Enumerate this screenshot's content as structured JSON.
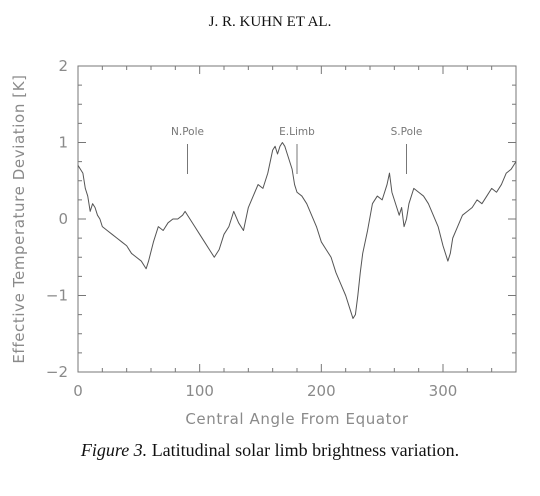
{
  "header": {
    "running_head": "J. R. KUHN ET AL."
  },
  "caption": {
    "label": "Figure 3.",
    "text": "Latitudinal solar limb brightness variation."
  },
  "chart_data": {
    "type": "line",
    "xlabel": "Central Angle From Equator",
    "ylabel": "Effective Temperature Deviation [K]",
    "xlim": [
      0,
      360
    ],
    "ylim": [
      -2,
      2
    ],
    "x_ticks": [
      0,
      100,
      200,
      300
    ],
    "y_ticks": [
      -2,
      -1,
      0,
      1,
      2
    ],
    "grid": false,
    "annotations": [
      {
        "label": "N.Pole",
        "x": 90
      },
      {
        "label": "E.Limb",
        "x": 180
      },
      {
        "label": "S.Pole",
        "x": 270
      }
    ],
    "series": [
      {
        "x": [
          0,
          2,
          4,
          6,
          8,
          10,
          12,
          14,
          16,
          18,
          20,
          24,
          28,
          32,
          36,
          40,
          44,
          48,
          52,
          56,
          58,
          62,
          66,
          70,
          74,
          78,
          82,
          86,
          88,
          92,
          96,
          100,
          104,
          108,
          112,
          116,
          120,
          124,
          128,
          132,
          136,
          140,
          144,
          148,
          152,
          156,
          160,
          162,
          164,
          166,
          168,
          170,
          172,
          174,
          176,
          178,
          180,
          184,
          188,
          192,
          196,
          200,
          204,
          208,
          212,
          216,
          220,
          224,
          226,
          228,
          230,
          232,
          234,
          238,
          242,
          246,
          250,
          254,
          256,
          258,
          262,
          264,
          266,
          268,
          270,
          272,
          276,
          280,
          284,
          288,
          292,
          296,
          300,
          304,
          306,
          308,
          312,
          316,
          320,
          324,
          328,
          332,
          336,
          340,
          344,
          348,
          352,
          356,
          360
        ],
        "y": [
          0.7,
          0.65,
          0.6,
          0.4,
          0.3,
          0.1,
          0.2,
          0.15,
          0.05,
          0.0,
          -0.1,
          -0.15,
          -0.2,
          -0.25,
          -0.3,
          -0.35,
          -0.45,
          -0.5,
          -0.55,
          -0.65,
          -0.55,
          -0.3,
          -0.1,
          -0.15,
          -0.05,
          0.0,
          0.0,
          0.05,
          0.1,
          0.0,
          -0.1,
          -0.2,
          -0.3,
          -0.4,
          -0.5,
          -0.4,
          -0.2,
          -0.1,
          0.1,
          -0.05,
          -0.15,
          0.15,
          0.3,
          0.45,
          0.4,
          0.6,
          0.9,
          0.95,
          0.85,
          0.95,
          1.0,
          0.95,
          0.85,
          0.75,
          0.65,
          0.45,
          0.35,
          0.3,
          0.2,
          0.05,
          -0.1,
          -0.3,
          -0.4,
          -0.5,
          -0.7,
          -0.85,
          -1.0,
          -1.2,
          -1.3,
          -1.25,
          -1.0,
          -0.7,
          -0.45,
          -0.15,
          0.2,
          0.3,
          0.25,
          0.45,
          0.6,
          0.35,
          0.15,
          0.05,
          0.15,
          -0.1,
          0.0,
          0.2,
          0.4,
          0.35,
          0.3,
          0.2,
          0.05,
          -0.1,
          -0.35,
          -0.55,
          -0.45,
          -0.25,
          -0.1,
          0.05,
          0.1,
          0.15,
          0.25,
          0.2,
          0.3,
          0.4,
          0.35,
          0.45,
          0.6,
          0.65,
          0.75
        ]
      }
    ]
  }
}
